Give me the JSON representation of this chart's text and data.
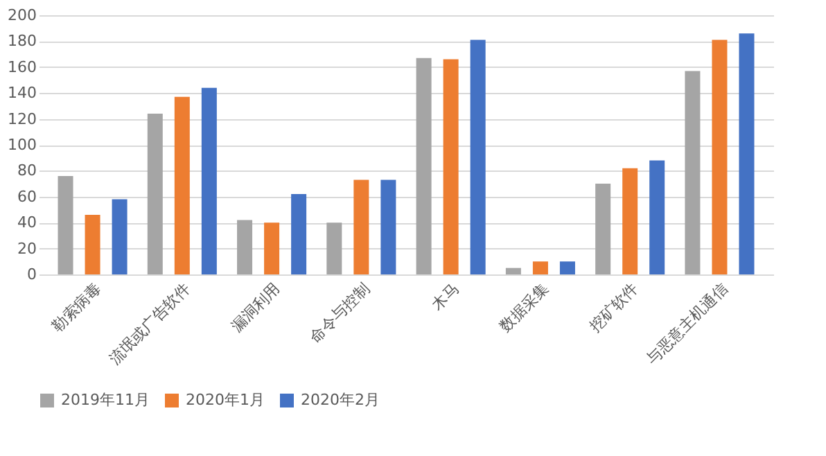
{
  "chart_data": {
    "type": "bar",
    "categories": [
      "勒索病毒",
      "流氓或广告软件",
      "漏洞利用",
      "命令与控制",
      "木马",
      "数据采集",
      "挖矿软件",
      "与恶意主机通信"
    ],
    "series": [
      {
        "name": "2019年11月",
        "color": "#a5a5a5",
        "values": [
          76,
          124,
          42,
          40,
          167,
          5,
          70,
          157
        ]
      },
      {
        "name": "2020年1月",
        "color": "#ed7d31",
        "values": [
          46,
          137,
          40,
          73,
          166,
          10,
          82,
          181
        ]
      },
      {
        "name": "2020年2月",
        "color": "#4472c4",
        "values": [
          58,
          144,
          62,
          73,
          181,
          10,
          88,
          186
        ]
      }
    ],
    "ylim": [
      0,
      200
    ],
    "yticks": [
      0,
      20,
      40,
      60,
      80,
      100,
      120,
      140,
      160,
      180,
      200
    ],
    "grid": "y",
    "legend": "bottom"
  }
}
